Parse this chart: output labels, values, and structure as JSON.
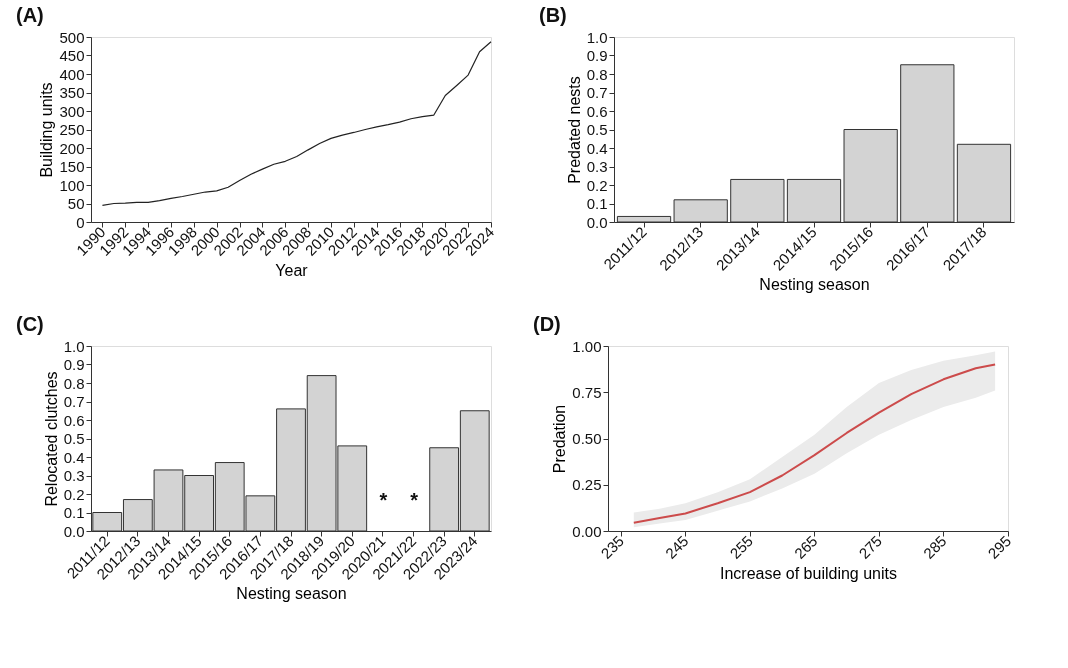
{
  "chart_data": [
    {
      "type": "line",
      "title": "(A)",
      "xlabel": "Year",
      "ylabel": "Building units",
      "x": [
        1990,
        1991,
        1992,
        1993,
        1994,
        1995,
        1996,
        1997,
        1998,
        1999,
        2000,
        2001,
        2002,
        2003,
        2004,
        2005,
        2006,
        2007,
        2008,
        2009,
        2010,
        2011,
        2012,
        2013,
        2014,
        2015,
        2016,
        2017,
        2018,
        2019,
        2020,
        2021,
        2022,
        2023,
        2024
      ],
      "series": [
        {
          "color": "#222222",
          "values": [
            45,
            50,
            51,
            53,
            53,
            58,
            64,
            69,
            75,
            81,
            84,
            94,
            112,
            129,
            143,
            156,
            164,
            177,
            195,
            212,
            226,
            235,
            242,
            250,
            257,
            263,
            270,
            279,
            285,
            289,
            342,
            369,
            397,
            460,
            487
          ]
        }
      ],
      "xlim": [
        1989,
        2024
      ],
      "xticks": [
        1990,
        1992,
        1994,
        1996,
        1998,
        2000,
        2002,
        2004,
        2006,
        2008,
        2010,
        2012,
        2014,
        2016,
        2018,
        2020,
        2022,
        2024
      ],
      "ylim": [
        0,
        500
      ],
      "yticks": [
        0,
        50,
        100,
        150,
        200,
        250,
        300,
        350,
        400,
        450,
        500
      ],
      "grid": false,
      "line_style": "solid"
    },
    {
      "type": "bar",
      "title": "(B)",
      "xlabel": "Nesting season",
      "ylabel": "Predated nests",
      "categories": [
        "2011/12",
        "2012/13",
        "2013/14",
        "2014/15",
        "2015/16",
        "2016/17",
        "2017/18"
      ],
      "series": [
        {
          "color": "#d3d3d3",
          "values": [
            0.03,
            0.12,
            0.23,
            0.23,
            0.5,
            0.85,
            0.42
          ]
        }
      ],
      "ylim": [
        0,
        1.0
      ],
      "yticks": [
        {
          "value": 0,
          "label": "0.0"
        },
        0.1,
        0.2,
        0.3,
        0.4,
        0.5,
        0.6,
        0.7,
        0.8,
        0.9,
        {
          "value": 1,
          "label": "1.0"
        }
      ],
      "grid": false
    },
    {
      "type": "bar",
      "title": "(C)",
      "xlabel": "Nesting season",
      "ylabel": "Relocated clutches",
      "categories": [
        "2011/12",
        "2012/13",
        "2013/14",
        "2014/15",
        "2015/16",
        "2016/17",
        "2017/18",
        "2018/19",
        "2019/20",
        "2020/21",
        "2021/22",
        "2022/23",
        "2023/24"
      ],
      "series": [
        {
          "color": "#d3d3d3",
          "values": [
            0.1,
            0.17,
            0.33,
            0.3,
            0.37,
            0.19,
            0.66,
            0.84,
            0.46,
            null,
            null,
            0.45,
            0.65
          ]
        }
      ],
      "annotations": [
        "*",
        "*"
      ],
      "ylim": [
        0,
        1.0
      ],
      "yticks": [
        {
          "value": 0,
          "label": "0.0"
        },
        0.1,
        0.2,
        0.3,
        0.4,
        0.5,
        0.6,
        0.7,
        0.8,
        0.9,
        {
          "value": 1,
          "label": "1.0"
        }
      ],
      "grid": false
    },
    {
      "type": "line",
      "title": "(D)",
      "xlabel": "Increase of building  units",
      "ylabel": "Predation",
      "x": [
        237,
        241,
        245,
        250,
        255,
        260,
        265,
        270,
        275,
        280,
        285,
        290,
        293
      ],
      "series": [
        {
          "color": "#cc4b4b",
          "values": [
            0.045,
            0.07,
            0.095,
            0.15,
            0.21,
            0.3,
            0.41,
            0.53,
            0.64,
            0.74,
            0.82,
            0.88,
            0.9
          ],
          "lower": [
            0.02,
            0.04,
            0.06,
            0.11,
            0.16,
            0.23,
            0.31,
            0.42,
            0.52,
            0.6,
            0.67,
            0.72,
            0.76
          ],
          "upper": [
            0.1,
            0.12,
            0.15,
            0.21,
            0.28,
            0.4,
            0.52,
            0.67,
            0.8,
            0.87,
            0.92,
            0.95,
            0.97
          ]
        }
      ],
      "xlim": [
        233,
        295
      ],
      "xticks": [
        235,
        245,
        255,
        265,
        275,
        285,
        295
      ],
      "ylim": [
        0,
        1
      ],
      "yticks": [
        {
          "value": 0,
          "label": "0.00"
        },
        {
          "value": 0.25,
          "label": "0.25"
        },
        {
          "value": 0.5,
          "label": "0.50"
        },
        {
          "value": 0.75,
          "label": "0.75"
        },
        {
          "value": 1,
          "label": "1.00"
        }
      ],
      "grid": false,
      "line_style": "solid"
    }
  ]
}
